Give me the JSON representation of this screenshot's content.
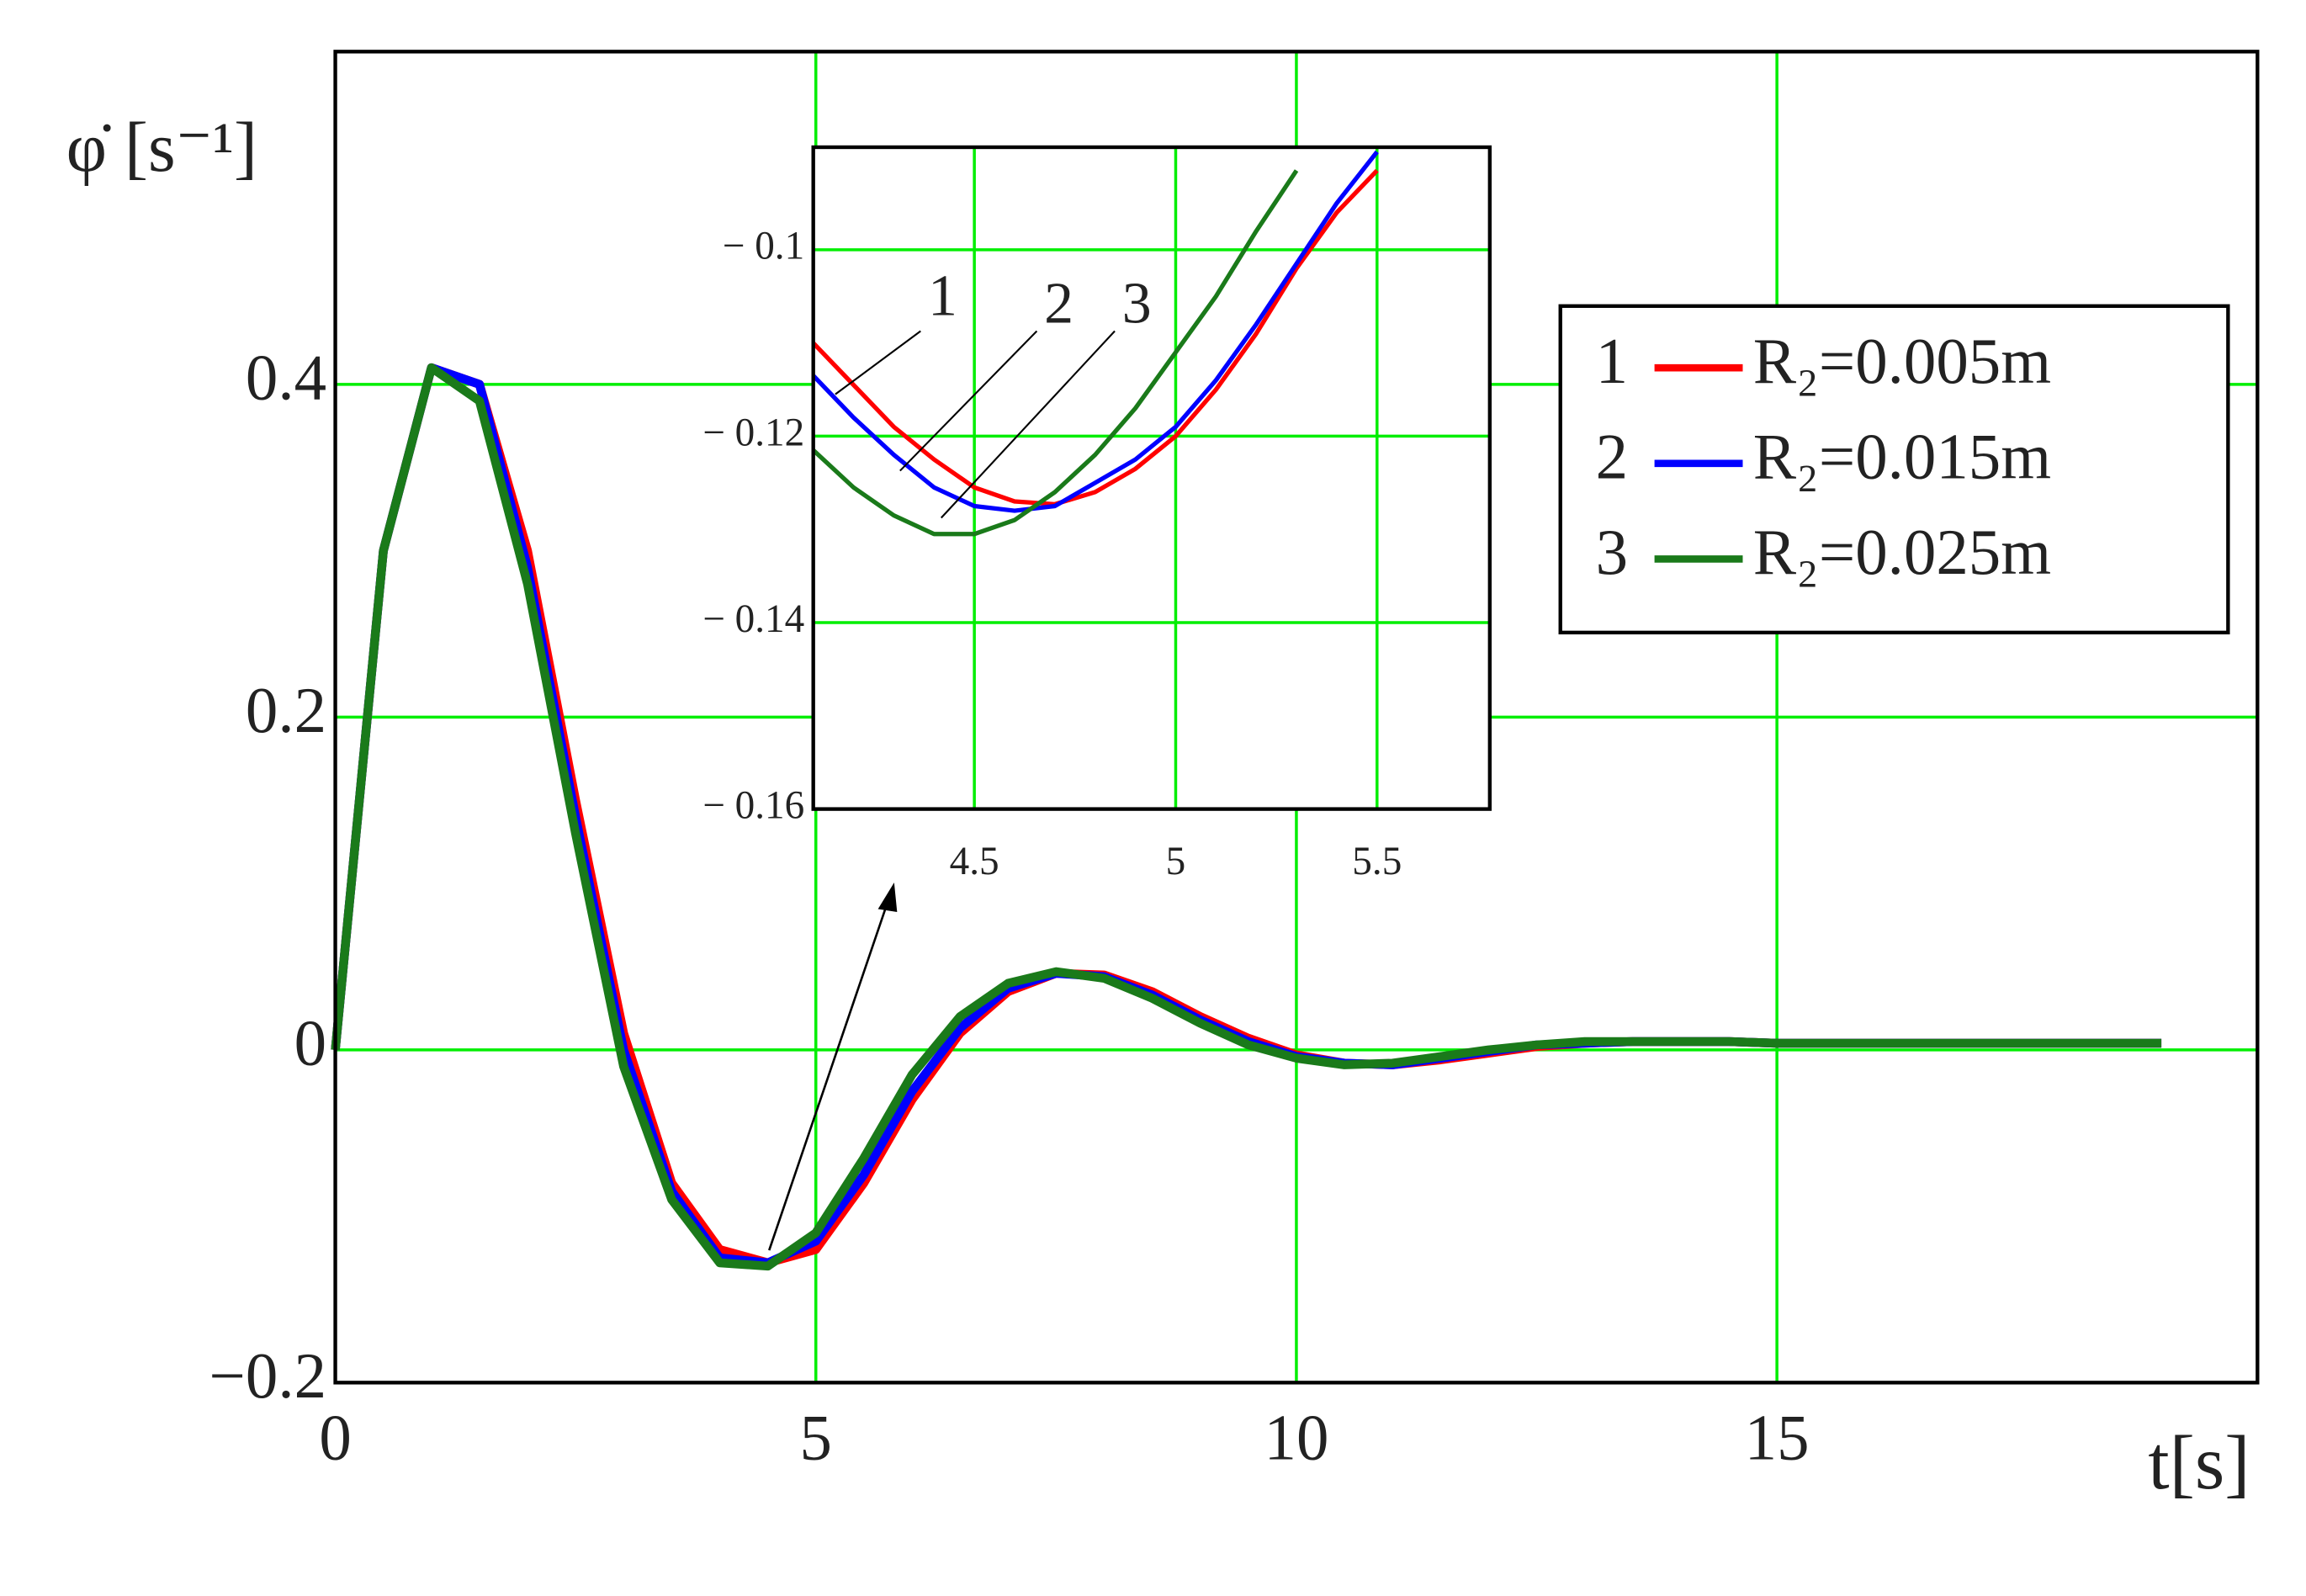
{
  "chart_data": [
    {
      "type": "line",
      "y_label": "φ̇ [s⁻¹]",
      "x_label": "t[s]",
      "xlim": [
        0,
        20
      ],
      "ylim": [
        -0.2,
        0.6
      ],
      "xticks": [
        0,
        5,
        10,
        15
      ],
      "yticks": [
        {
          "value": -0.2,
          "label": "−0.2"
        },
        0,
        0.2,
        0.4
      ],
      "grid": true,
      "grid_color": "#00ee00",
      "x": [
        0,
        0.5,
        1,
        1.5,
        2,
        2.5,
        3,
        3.5,
        4,
        4.5,
        5,
        5.5,
        6,
        6.5,
        7,
        7.5,
        8,
        8.5,
        9,
        9.5,
        10,
        10.5,
        11,
        11.5,
        12,
        12.5,
        13,
        13.5,
        14,
        14.5,
        15,
        15.5,
        16,
        16.5,
        17,
        17.5,
        18,
        18.5,
        19
      ],
      "legend_position": "upper right",
      "series": [
        {
          "name": "R₂=0.005m",
          "number": "1",
          "color": "#ff0000",
          "values": [
            0,
            0.3,
            0.41,
            0.4,
            0.3,
            0.15,
            0.01,
            -0.08,
            -0.12,
            -0.128,
            -0.12,
            -0.08,
            -0.03,
            0.01,
            0.035,
            0.046,
            0.045,
            0.035,
            0.02,
            0.007,
            -0.003,
            -0.008,
            -0.009,
            -0.006,
            -0.002,
            0.002,
            0.004,
            0.005,
            0.005,
            0.005,
            0.004,
            0.004,
            0.004,
            0.004,
            0.004,
            0.004,
            0.004,
            0.004,
            0.004
          ]
        },
        {
          "name": "R₂=0.015m",
          "number": "2",
          "color": "#0000ff",
          "values": [
            0,
            0.3,
            0.41,
            0.4,
            0.29,
            0.14,
            0.0,
            -0.085,
            -0.125,
            -0.128,
            -0.115,
            -0.075,
            -0.025,
            0.013,
            0.037,
            0.046,
            0.044,
            0.033,
            0.018,
            0.005,
            -0.004,
            -0.008,
            -0.009,
            -0.005,
            -0.001,
            0.003,
            0.004,
            0.005,
            0.005,
            0.005,
            0.004,
            0.004,
            0.004,
            0.004,
            0.004,
            0.004,
            0.004,
            0.004,
            0.004
          ]
        },
        {
          "name": "R₂=0.025m",
          "number": "3",
          "color": "#1a7a1a",
          "values": [
            0,
            0.3,
            0.41,
            0.39,
            0.28,
            0.13,
            -0.01,
            -0.09,
            -0.128,
            -0.13,
            -0.11,
            -0.065,
            -0.015,
            0.02,
            0.04,
            0.047,
            0.043,
            0.031,
            0.016,
            0.003,
            -0.005,
            -0.009,
            -0.008,
            -0.004,
            0.0,
            0.003,
            0.005,
            0.005,
            0.005,
            0.005,
            0.004,
            0.004,
            0.004,
            0.004,
            0.004,
            0.004,
            0.004,
            0.004,
            0.004
          ]
        }
      ]
    },
    {
      "type": "line",
      "xlim": [
        4.1,
        5.78
      ],
      "ylim": [
        -0.16,
        -0.089
      ],
      "xticks": [
        4.5,
        5,
        5.5
      ],
      "yticks": [
        {
          "value": -0.1,
          "label": "− 0.1"
        },
        {
          "value": -0.12,
          "label": "− 0.12"
        },
        {
          "value": -0.14,
          "label": "− 0.14"
        },
        {
          "value": -0.16,
          "label": "− 0.16"
        }
      ],
      "grid": true,
      "grid_color": "#00ee00",
      "annotations": [
        "1",
        "2",
        "3"
      ],
      "x": [
        4.1,
        4.2,
        4.3,
        4.4,
        4.5,
        4.6,
        4.7,
        4.8,
        4.9,
        5.0,
        5.1,
        5.2,
        5.3,
        5.4,
        5.5
      ],
      "series": [
        {
          "color": "#ff0000",
          "values": [
            -0.11,
            -0.1145,
            -0.119,
            -0.1225,
            -0.1255,
            -0.127,
            -0.1273,
            -0.126,
            -0.1235,
            -0.12,
            -0.115,
            -0.109,
            -0.102,
            -0.096,
            -0.0915
          ]
        },
        {
          "color": "#0000ff",
          "values": [
            -0.1135,
            -0.118,
            -0.122,
            -0.1255,
            -0.1275,
            -0.128,
            -0.1275,
            -0.125,
            -0.1225,
            -0.119,
            -0.114,
            -0.108,
            -0.1015,
            -0.095,
            -0.0895
          ]
        },
        {
          "color": "#1a7a1a",
          "values": [
            -0.1215,
            -0.1255,
            -0.1285,
            -0.1305,
            -0.1305,
            -0.129,
            -0.126,
            -0.122,
            -0.117,
            -0.111,
            -0.105,
            -0.098,
            -0.0915,
            null,
            null
          ]
        }
      ]
    }
  ]
}
